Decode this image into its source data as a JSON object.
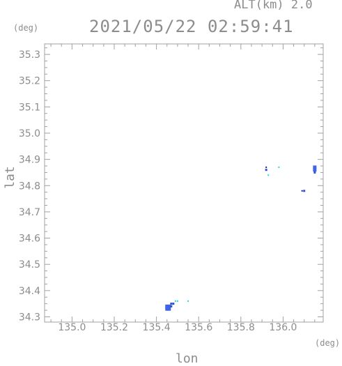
{
  "header": {
    "altitude": "ALT(km) 2.0",
    "timestamp": "2021/05/22 02:59:41"
  },
  "axes": {
    "y_unit": "(deg)",
    "x_unit": "(deg)",
    "ylabel": "lat",
    "xlabel": "lon"
  },
  "chart_data": {
    "type": "scatter",
    "title": "2021/05/22 02:59:41",
    "xlabel": "lon",
    "ylabel": "lat",
    "xlim": [
      134.87,
      136.19
    ],
    "ylim": [
      34.28,
      35.34
    ],
    "x_ticks": [
      "135.0",
      "135.2",
      "135.4",
      "135.6",
      "135.8",
      "136.0"
    ],
    "x_tick_values": [
      135.0,
      135.2,
      135.4,
      135.6,
      135.8,
      136.0
    ],
    "y_ticks": [
      "34.3",
      "34.4",
      "34.5",
      "34.6",
      "34.7",
      "34.8",
      "34.9",
      "35.0",
      "35.1",
      "35.2",
      "35.3"
    ],
    "y_tick_values": [
      34.3,
      34.4,
      34.5,
      34.6,
      34.7,
      34.8,
      34.9,
      35.0,
      35.1,
      35.2,
      35.3
    ],
    "grid": false,
    "colors": {
      "strong": "#3f64e8",
      "mid": "#2f4fd0",
      "weak": "#22d5e6",
      "dark": "#1a1f8a"
    },
    "points": [
      {
        "x": 135.45,
        "y": 34.33,
        "level": "strong"
      },
      {
        "x": 135.46,
        "y": 34.33,
        "level": "strong"
      },
      {
        "x": 135.45,
        "y": 34.34,
        "level": "strong"
      },
      {
        "x": 135.46,
        "y": 34.34,
        "level": "strong"
      },
      {
        "x": 135.47,
        "y": 34.34,
        "level": "mid"
      },
      {
        "x": 135.47,
        "y": 34.35,
        "level": "mid"
      },
      {
        "x": 135.48,
        "y": 34.35,
        "level": "mid"
      },
      {
        "x": 135.49,
        "y": 34.36,
        "level": "weak"
      },
      {
        "x": 135.5,
        "y": 34.36,
        "level": "weak"
      },
      {
        "x": 135.55,
        "y": 34.36,
        "level": "weak"
      },
      {
        "x": 135.92,
        "y": 34.87,
        "level": "dark"
      },
      {
        "x": 135.92,
        "y": 34.86,
        "level": "mid"
      },
      {
        "x": 135.93,
        "y": 34.84,
        "level": "weak"
      },
      {
        "x": 135.98,
        "y": 34.87,
        "level": "weak"
      },
      {
        "x": 136.15,
        "y": 34.87,
        "level": "strong"
      },
      {
        "x": 136.15,
        "y": 34.86,
        "level": "strong"
      },
      {
        "x": 136.15,
        "y": 34.85,
        "level": "mid"
      },
      {
        "x": 136.09,
        "y": 34.78,
        "level": "dark"
      },
      {
        "x": 136.1,
        "y": 34.78,
        "level": "mid"
      }
    ]
  }
}
